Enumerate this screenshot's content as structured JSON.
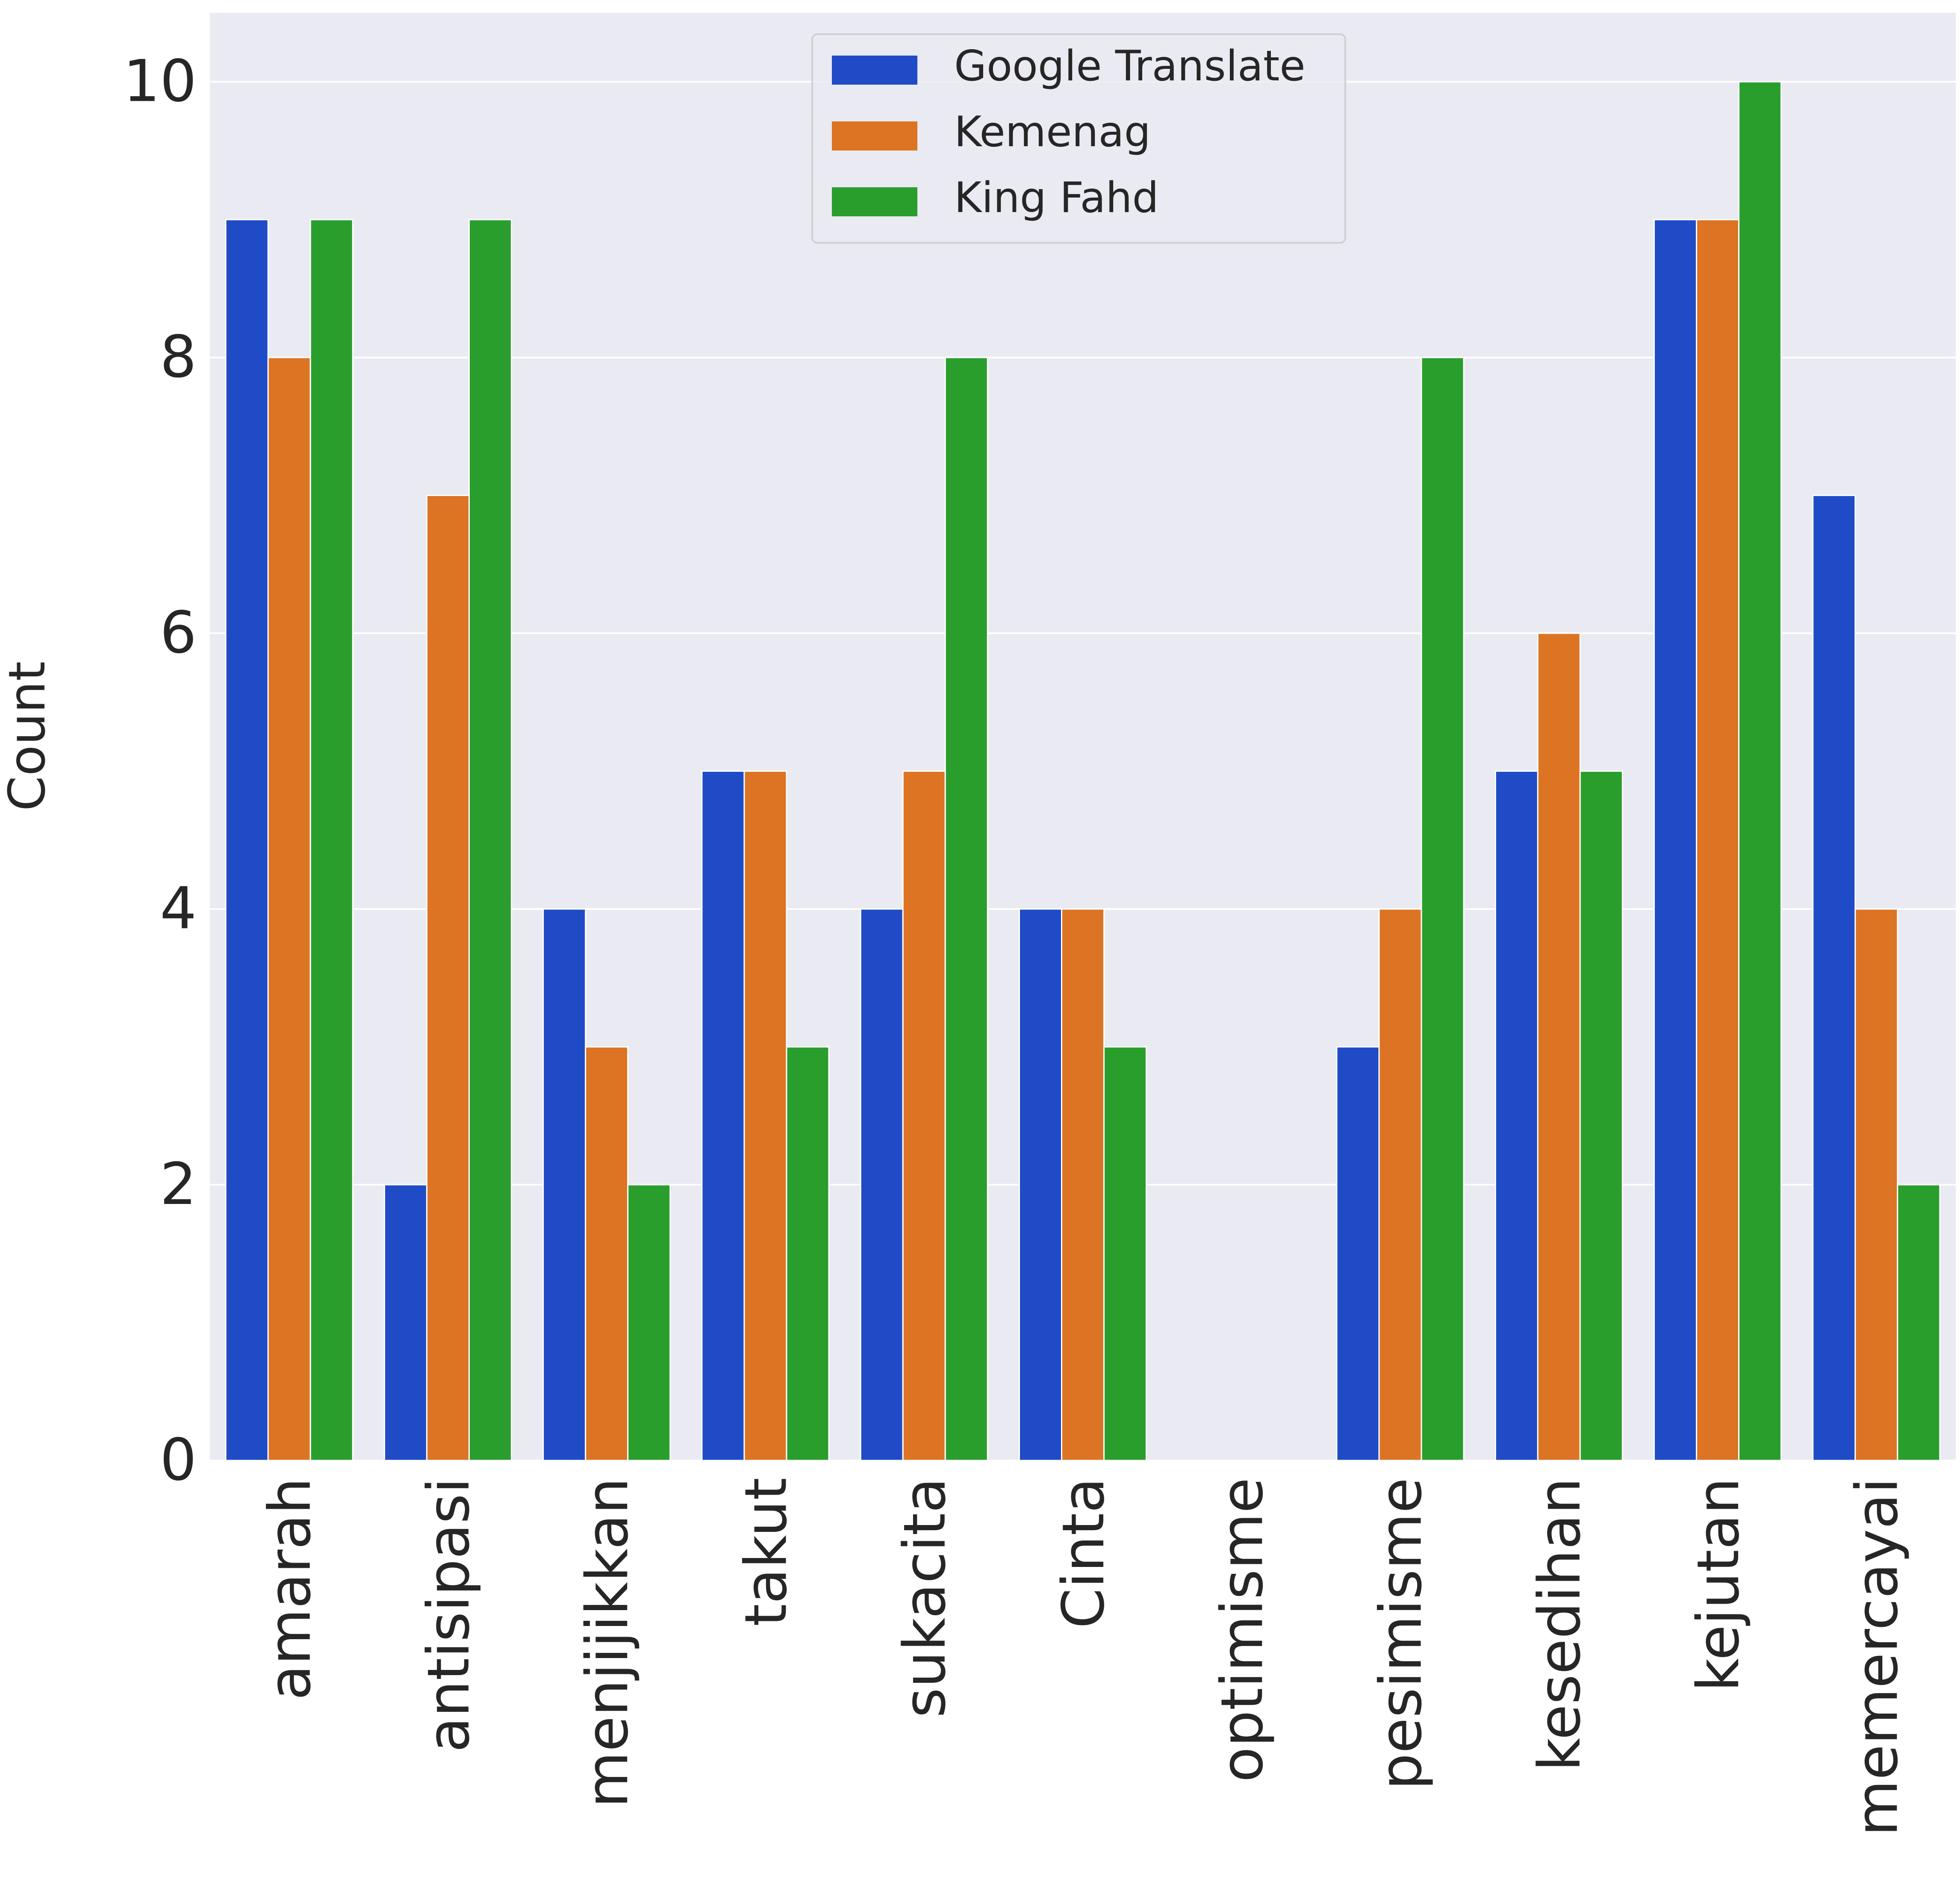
{
  "chart_data": {
    "type": "bar",
    "categories": [
      "amarah",
      "antisipasi",
      "menjijikkan",
      "takut",
      "sukacita",
      "Cinta",
      "optimisme",
      "pesimisme",
      "kesedihan",
      "kejutan",
      "memercayai"
    ],
    "series": [
      {
        "name": "Google Translate",
        "color": "#1f4bc6",
        "values": [
          9,
          2,
          4,
          5,
          4,
          4,
          0,
          3,
          5,
          9,
          7
        ]
      },
      {
        "name": "Kemenag",
        "color": "#dc7424",
        "values": [
          8,
          7,
          3,
          5,
          5,
          4,
          0,
          4,
          6,
          9,
          4
        ]
      },
      {
        "name": "King Fahd",
        "color": "#2a9e2d",
        "values": [
          9,
          9,
          2,
          3,
          8,
          3,
          0,
          8,
          5,
          10,
          2
        ]
      }
    ],
    "xlabel": "",
    "ylabel": "Count",
    "ylim": [
      0,
      10.5
    ],
    "yticks": [
      0,
      2,
      4,
      6,
      8,
      10
    ],
    "grid": true,
    "legend_position": "top-center",
    "background": "#eaeaf2"
  }
}
